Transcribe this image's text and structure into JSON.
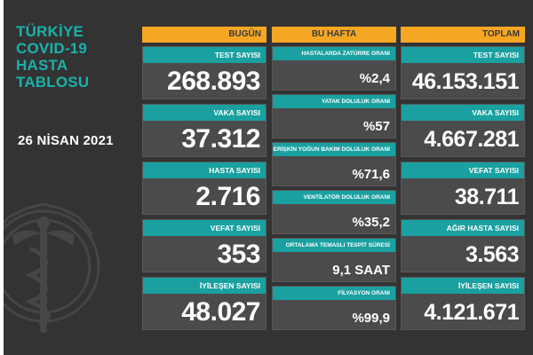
{
  "title_lines": [
    "TÜRKİYE",
    "COVID-19",
    "HASTA",
    "TABLOSU"
  ],
  "date": "26 NİSAN 2021",
  "columns": {
    "today": "BUGÜN",
    "this_week": "BU HAFTA",
    "total": "TOPLAM"
  },
  "today": [
    {
      "label": "TEST SAYISI",
      "value": "268.893"
    },
    {
      "label": "VAKA SAYISI",
      "value": "37.312"
    },
    {
      "label": "HASTA SAYISI",
      "value": "2.716"
    },
    {
      "label": "VEFAT SAYISI",
      "value": "353"
    },
    {
      "label": "İYİLEŞEN SAYISI",
      "value": "48.027"
    }
  ],
  "this_week": [
    {
      "label": "HASTALARDA ZATÜRRE ORANI",
      "value": "%2,4"
    },
    {
      "label": "YATAK DOLULUK ORANI",
      "value": "%57"
    },
    {
      "label": "ERİŞKİN YOĞUN BAKIM DOLULUK ORANI",
      "value": "%71,6"
    },
    {
      "label": "VENTİLATÖR DOLULUK ORANI",
      "value": "%35,2"
    },
    {
      "label": "ORTALAMA TEMASLI TESPİT SÜRESİ",
      "value": "9,1 SAAT"
    },
    {
      "label": "FİLYASYON ORANI",
      "value": "%99,9"
    }
  ],
  "total": [
    {
      "label": "TEST SAYISI",
      "value": "46.153.151"
    },
    {
      "label": "VAKA SAYISI",
      "value": "4.667.281"
    },
    {
      "label": "VEFAT SAYISI",
      "value": "38.711"
    },
    {
      "label": "AĞIR HASTA SAYISI",
      "value": "3.563"
    },
    {
      "label": "İYİLEŞEN SAYISI",
      "value": "4.121.671"
    }
  ],
  "colors": {
    "background": "#333333",
    "header": "#f5a623",
    "label_bar": "#1aa0a0",
    "title": "#17b3ab",
    "card": "#4b4b4b"
  },
  "icons": {
    "emblem": "health-ministry-caduceus-emblem-icon"
  }
}
